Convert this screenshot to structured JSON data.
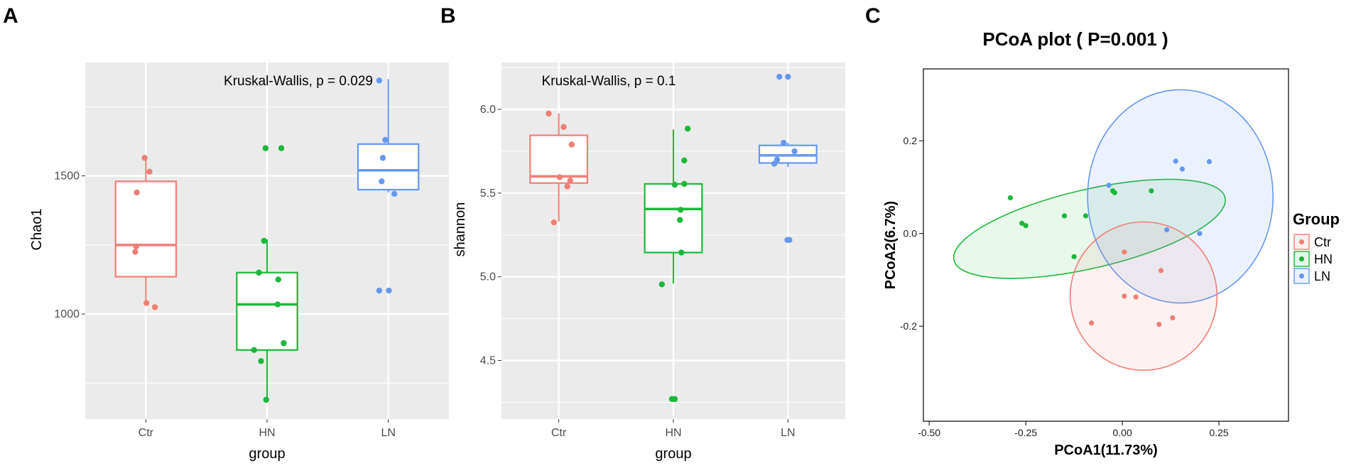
{
  "panel_letters": {
    "a": "A",
    "b": "B",
    "c": "C"
  },
  "colors": {
    "Ctr": "#f07f75",
    "HN": "#1cb83a",
    "LN": "#6698f0",
    "panel_bg": "#ebebeb",
    "grid": "#ffffff"
  },
  "chart_data": [
    {
      "type": "box",
      "title": "",
      "annotation": "Kruskal-Wallis, p = 0.029",
      "xlabel": "group",
      "ylabel": "Chao1",
      "categories": [
        "Ctr",
        "HN",
        "LN"
      ],
      "ylim": [
        620,
        1910
      ],
      "yticks": [
        1000,
        1500
      ],
      "ytick_labels": [
        "1000",
        "1500"
      ],
      "boxes": [
        {
          "group": "Ctr",
          "min": 1030,
          "q1": 1135,
          "median": 1250,
          "q3": 1480,
          "max": 1570
        },
        {
          "group": "HN",
          "min": 680,
          "q1": 870,
          "median": 1035,
          "q3": 1150,
          "max": 1270
        },
        {
          "group": "LN",
          "min": 1440,
          "q1": 1450,
          "median": 1520,
          "q3": 1615,
          "max": 1850
        }
      ],
      "points": [
        {
          "group": "Ctr",
          "jitter": -0.04,
          "value": 1565
        },
        {
          "group": "Ctr",
          "jitter": 0.12,
          "value": 1515
        },
        {
          "group": "Ctr",
          "jitter": -0.3,
          "value": 1440
        },
        {
          "group": "Ctr",
          "jitter": -0.32,
          "value": 1245
        },
        {
          "group": "Ctr",
          "jitter": -0.35,
          "value": 1225
        },
        {
          "group": "Ctr",
          "jitter": 0.02,
          "value": 1040
        },
        {
          "group": "Ctr",
          "jitter": 0.3,
          "value": 1025
        },
        {
          "group": "HN",
          "jitter": -0.05,
          "value": 1600
        },
        {
          "group": "HN",
          "jitter": 0.47,
          "value": 1600
        },
        {
          "group": "HN",
          "jitter": -0.1,
          "value": 1265
        },
        {
          "group": "HN",
          "jitter": -0.27,
          "value": 1150
        },
        {
          "group": "HN",
          "jitter": 0.37,
          "value": 1125
        },
        {
          "group": "HN",
          "jitter": 0.35,
          "value": 1035
        },
        {
          "group": "HN",
          "jitter": 0.55,
          "value": 895
        },
        {
          "group": "HN",
          "jitter": -0.43,
          "value": 870
        },
        {
          "group": "HN",
          "jitter": -0.2,
          "value": 830
        },
        {
          "group": "HN",
          "jitter": -0.03,
          "value": 690
        },
        {
          "group": "LN",
          "jitter": -0.3,
          "value": 1845
        },
        {
          "group": "LN",
          "jitter": -0.1,
          "value": 1630
        },
        {
          "group": "LN",
          "jitter": -0.18,
          "value": 1565
        },
        {
          "group": "LN",
          "jitter": -0.22,
          "value": 1480
        },
        {
          "group": "LN",
          "jitter": 0.2,
          "value": 1435
        },
        {
          "group": "LN",
          "jitter": -0.3,
          "value": 1085
        },
        {
          "group": "LN",
          "jitter": 0.02,
          "value": 1085
        }
      ]
    },
    {
      "type": "box",
      "title": "",
      "annotation": "Kruskal-Wallis, p = 0.1",
      "xlabel": "group",
      "ylabel": "shannon",
      "categories": [
        "Ctr",
        "HN",
        "LN"
      ],
      "ylim": [
        4.15,
        6.28
      ],
      "yticks": [
        4.5,
        5.0,
        5.5,
        6.0
      ],
      "ytick_labels": [
        "4.5",
        "5.0",
        "5.5",
        "6.0"
      ],
      "boxes": [
        {
          "group": "Ctr",
          "min": 5.33,
          "q1": 5.56,
          "median": 5.6,
          "q3": 5.845,
          "max": 5.975
        },
        {
          "group": "HN",
          "min": 4.96,
          "q1": 5.145,
          "median": 5.405,
          "q3": 5.555,
          "max": 5.88
        },
        {
          "group": "LN",
          "min": 5.655,
          "q1": 5.68,
          "median": 5.725,
          "q3": 5.785,
          "max": 5.8
        }
      ],
      "points": [
        {
          "group": "Ctr",
          "jitter": -0.35,
          "value": 5.975
        },
        {
          "group": "Ctr",
          "jitter": 0.17,
          "value": 5.895
        },
        {
          "group": "Ctr",
          "jitter": 0.45,
          "value": 5.79
        },
        {
          "group": "Ctr",
          "jitter": 0.03,
          "value": 5.595
        },
        {
          "group": "Ctr",
          "jitter": 0.4,
          "value": 5.575
        },
        {
          "group": "Ctr",
          "jitter": 0.3,
          "value": 5.54
        },
        {
          "group": "Ctr",
          "jitter": -0.17,
          "value": 5.325
        },
        {
          "group": "HN",
          "jitter": 0.5,
          "value": 5.885
        },
        {
          "group": "HN",
          "jitter": 0.38,
          "value": 5.695
        },
        {
          "group": "HN",
          "jitter": 0.38,
          "value": 5.555
        },
        {
          "group": "HN",
          "jitter": 0.05,
          "value": 5.55
        },
        {
          "group": "HN",
          "jitter": 0.25,
          "value": 5.4
        },
        {
          "group": "HN",
          "jitter": 0.23,
          "value": 5.34
        },
        {
          "group": "HN",
          "jitter": 0.28,
          "value": 5.145
        },
        {
          "group": "HN",
          "jitter": -0.4,
          "value": 4.955
        },
        {
          "group": "HN",
          "jitter": -0.05,
          "value": 4.27
        },
        {
          "group": "HN",
          "jitter": 0.05,
          "value": 4.27
        },
        {
          "group": "LN",
          "jitter": -0.3,
          "value": 6.195
        },
        {
          "group": "LN",
          "jitter": 0.0,
          "value": 6.195
        },
        {
          "group": "LN",
          "jitter": -0.15,
          "value": 5.8
        },
        {
          "group": "LN",
          "jitter": 0.23,
          "value": 5.75
        },
        {
          "group": "LN",
          "jitter": -0.38,
          "value": 5.7
        },
        {
          "group": "LN",
          "jitter": -0.48,
          "value": 5.675
        },
        {
          "group": "LN",
          "jitter": -0.02,
          "value": 5.22
        },
        {
          "group": "LN",
          "jitter": 0.05,
          "value": 5.22
        }
      ]
    },
    {
      "type": "scatter",
      "title": "PCoA plot ( P=0.001 )",
      "xlabel": "PCoA1(11.73%)",
      "ylabel": "PCoA2(6.7%)",
      "xlim": [
        -0.515,
        0.43
      ],
      "ylim": [
        -0.405,
        0.355
      ],
      "xticks": [
        -0.5,
        -0.25,
        0.0,
        0.25
      ],
      "xtick_labels": [
        "-0.50",
        "-0.25",
        "0.00",
        "0.25"
      ],
      "yticks": [
        -0.2,
        0.0,
        0.2
      ],
      "ytick_labels": [
        "-0.2",
        "0.0",
        "0.2"
      ],
      "legend": {
        "title": "Group",
        "position": "right",
        "entries": [
          "Ctr",
          "HN",
          "LN"
        ]
      },
      "ellipses": [
        {
          "group": "Ctr",
          "cx": 0.055,
          "cy": -0.135,
          "rx": 0.19,
          "ry": 0.16,
          "angle": 0
        },
        {
          "group": "HN",
          "cx": -0.085,
          "cy": 0.01,
          "rx": 0.36,
          "ry": 0.085,
          "angle": 13
        },
        {
          "group": "LN",
          "cx": 0.15,
          "cy": 0.08,
          "rx": 0.24,
          "ry": 0.23,
          "angle": 0
        }
      ],
      "points": [
        {
          "group": "Ctr",
          "x": 0.005,
          "y": -0.04
        },
        {
          "group": "Ctr",
          "x": 0.1,
          "y": -0.08
        },
        {
          "group": "Ctr",
          "x": 0.005,
          "y": -0.135
        },
        {
          "group": "Ctr",
          "x": 0.035,
          "y": -0.137
        },
        {
          "group": "Ctr",
          "x": -0.08,
          "y": -0.193
        },
        {
          "group": "Ctr",
          "x": 0.095,
          "y": -0.196
        },
        {
          "group": "Ctr",
          "x": 0.13,
          "y": -0.182
        },
        {
          "group": "HN",
          "x": -0.29,
          "y": 0.077
        },
        {
          "group": "HN",
          "x": -0.26,
          "y": 0.022
        },
        {
          "group": "HN",
          "x": -0.25,
          "y": 0.017
        },
        {
          "group": "HN",
          "x": -0.15,
          "y": 0.038
        },
        {
          "group": "HN",
          "x": -0.095,
          "y": 0.038
        },
        {
          "group": "HN",
          "x": -0.025,
          "y": 0.092
        },
        {
          "group": "HN",
          "x": -0.02,
          "y": 0.088
        },
        {
          "group": "HN",
          "x": 0.075,
          "y": 0.092
        },
        {
          "group": "HN",
          "x": -0.125,
          "y": -0.05
        },
        {
          "group": "LN",
          "x": -0.035,
          "y": 0.104
        },
        {
          "group": "LN",
          "x": 0.138,
          "y": 0.156
        },
        {
          "group": "LN",
          "x": 0.155,
          "y": 0.139
        },
        {
          "group": "LN",
          "x": 0.225,
          "y": 0.155
        },
        {
          "group": "LN",
          "x": 0.115,
          "y": 0.008
        },
        {
          "group": "LN",
          "x": 0.2,
          "y": 0.0
        }
      ]
    }
  ]
}
